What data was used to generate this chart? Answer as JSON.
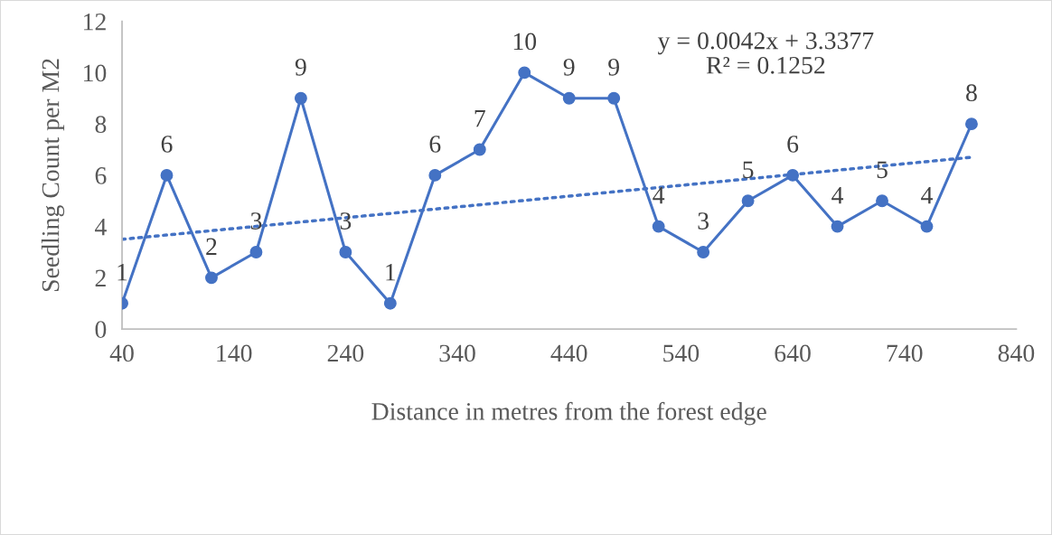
{
  "chart_data": {
    "type": "line",
    "xlabel": "Distance in metres from the forest edge",
    "ylabel": "Seedling Count per M2",
    "xlim": [
      40,
      840
    ],
    "xticks": [
      40,
      140,
      240,
      340,
      440,
      540,
      640,
      740,
      840
    ],
    "ylim": [
      0,
      12
    ],
    "yticks": [
      0,
      2,
      4,
      6,
      8,
      10,
      12
    ],
    "grid": false,
    "legend": false,
    "series": [
      {
        "color": "#4472c4",
        "marker": "circle",
        "line_style": "solid",
        "x": [
          40,
          80,
          120,
          160,
          200,
          240,
          280,
          320,
          360,
          400,
          440,
          480,
          520,
          560,
          600,
          640,
          680,
          720,
          760,
          800
        ],
        "values": [
          1,
          6,
          2,
          3,
          9,
          3,
          1,
          6,
          7,
          10,
          9,
          9,
          4,
          3,
          5,
          6,
          4,
          5,
          4,
          8
        ],
        "value_labels": [
          "1",
          "6",
          "2",
          "3",
          "9",
          "3",
          "1",
          "6",
          "7",
          "10",
          "9",
          "9",
          "4",
          "3",
          "5",
          "6",
          "4",
          "5",
          "4",
          "8"
        ]
      },
      {
        "type": "line",
        "color": "#4472c4",
        "marker": "none",
        "line_style": "dotted",
        "x": [
          40,
          800
        ],
        "values": [
          3.5,
          6.7
        ]
      }
    ],
    "annotations": [
      "y = 0.0042x + 3.3377\nR² = 0.1252"
    ]
  }
}
